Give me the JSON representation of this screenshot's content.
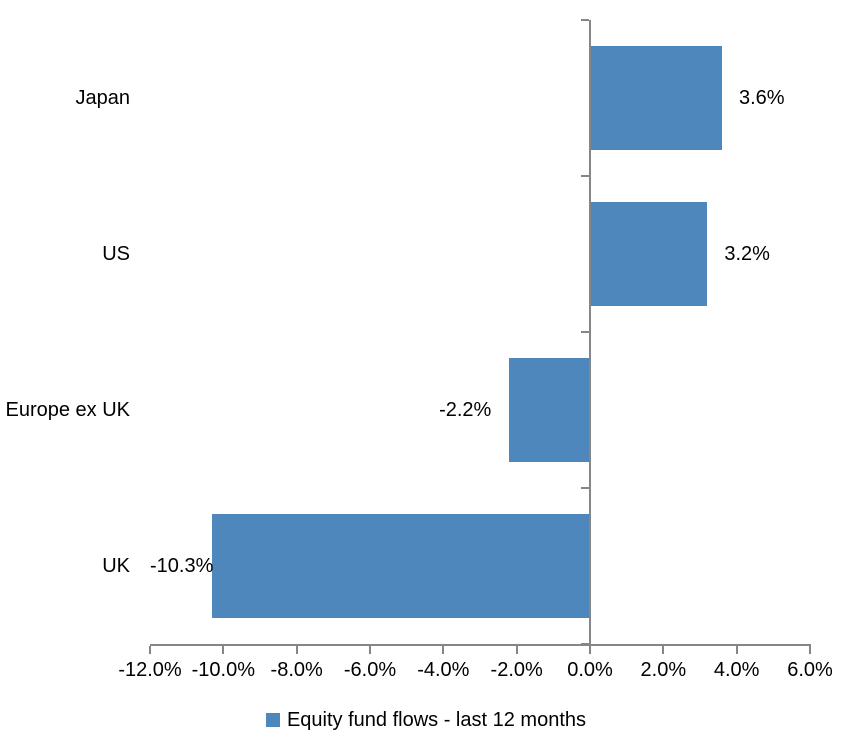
{
  "chart_data": {
    "type": "bar",
    "orientation": "horizontal",
    "title": "",
    "categories": [
      "Japan",
      "US",
      "Europe ex UK",
      "UK"
    ],
    "series": [
      {
        "name": "Equity fund flows - last 12 months",
        "values": [
          3.6,
          3.2,
          -2.2,
          -10.3
        ],
        "data_labels": [
          "3.6%",
          "3.2%",
          "-2.2%",
          "-10.3%"
        ]
      }
    ],
    "x_axis": {
      "min": -12,
      "max": 6,
      "step": 2,
      "tick_labels": [
        "-12.0%",
        "-10.0%",
        "-8.0%",
        "-6.0%",
        "-4.0%",
        "-2.0%",
        "0.0%",
        "2.0%",
        "4.0%",
        "6.0%"
      ]
    },
    "legend": {
      "position": "bottom",
      "label": "Equity fund flows - last 12 months"
    },
    "grid": false,
    "colors": {
      "bar": "#4E87BC",
      "axis": "#868686",
      "text": "#000000",
      "background": "#FFFFFF"
    }
  }
}
